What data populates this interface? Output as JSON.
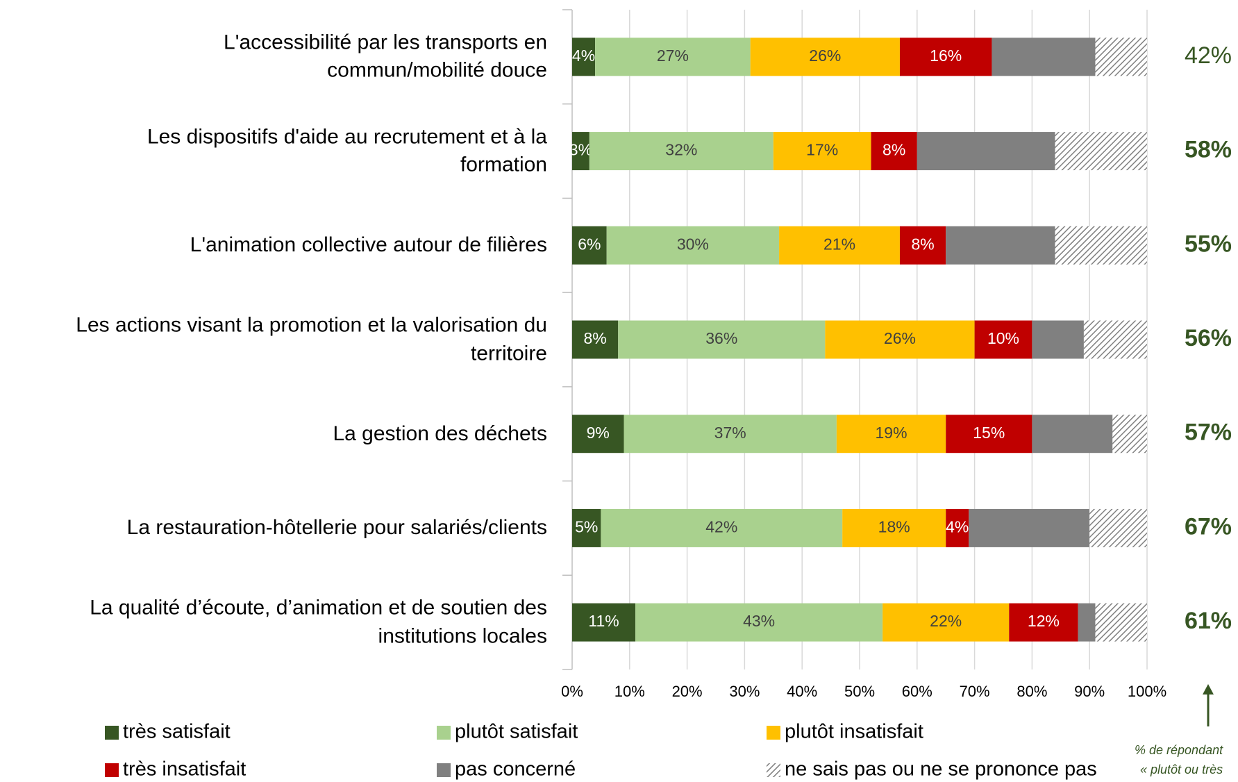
{
  "chart_data": {
    "type": "stacked-bar-horizontal",
    "categories": [
      "L'accessibilité par les transports en\ncommun/mobilité douce",
      "Les dispositifs d'aide au recrutement et à la\nformation",
      "L'animation collective autour de filières",
      "Les actions visant la promotion et la valorisation du\nterritoire",
      "La gestion des déchets",
      "La restauration-hôtellerie pour salariés/clients",
      "La qualité d’écoute, d’animation et de soutien des\ninstitutions locales"
    ],
    "series": [
      {
        "name": "très satisfait",
        "color": "#375623",
        "label_color": "#ffffff",
        "values": [
          4,
          3,
          6,
          8,
          9,
          5,
          11
        ],
        "value_labels": [
          "4%",
          "3%",
          "6%",
          "8%",
          "9%",
          "5%",
          "11%"
        ]
      },
      {
        "name": "plutôt satisfait",
        "color": "#a9d18e",
        "label_color": "#404040",
        "values": [
          27,
          32,
          30,
          36,
          37,
          42,
          43
        ],
        "value_labels": [
          "27%",
          "32%",
          "30%",
          "36%",
          "37%",
          "42%",
          "43%"
        ]
      },
      {
        "name": "plutôt insatisfait",
        "color": "#ffc000",
        "label_color": "#404040",
        "values": [
          26,
          17,
          21,
          26,
          19,
          18,
          22
        ],
        "value_labels": [
          "26%",
          "17%",
          "21%",
          "26%",
          "19%",
          "18%",
          "22%"
        ]
      },
      {
        "name": "très insatisfait",
        "color": "#c00000",
        "label_color": "#ffffff",
        "values": [
          16,
          8,
          8,
          10,
          15,
          4,
          12
        ],
        "value_labels": [
          "16%",
          "8%",
          "8%",
          "10%",
          "15%",
          "4%",
          "12%"
        ]
      },
      {
        "name": "pas concerné",
        "color": "#808080",
        "values": [
          18,
          24,
          19,
          9,
          14,
          21,
          3
        ]
      },
      {
        "name": "ne sais pas ou ne se prononce pas",
        "color": "#808080",
        "hatched": true,
        "values": [
          9,
          16,
          16,
          11,
          6,
          10,
          9
        ]
      }
    ],
    "xlim": [
      0,
      100
    ],
    "xticks": [
      {
        "value": 0,
        "label": "0%"
      },
      {
        "value": 10,
        "label": "10%"
      },
      {
        "value": 20,
        "label": "20%"
      },
      {
        "value": 30,
        "label": "30%"
      },
      {
        "value": 40,
        "label": "40%"
      },
      {
        "value": 50,
        "label": "50%"
      },
      {
        "value": 60,
        "label": "60%"
      },
      {
        "value": 70,
        "label": "70%"
      },
      {
        "value": 80,
        "label": "80%"
      },
      {
        "value": 90,
        "label": "90%"
      },
      {
        "value": 100,
        "label": "100%"
      }
    ],
    "grid": true,
    "right_labels": [
      "42%",
      "58%",
      "55%",
      "56%",
      "57%",
      "67%",
      "61%"
    ],
    "right_color": "#375623",
    "annotation": [
      "% de répondant",
      "« plutôt ou très"
    ]
  }
}
